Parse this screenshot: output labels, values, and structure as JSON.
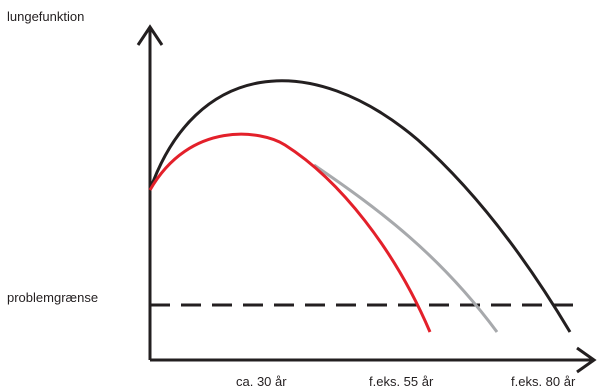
{
  "diagram": {
    "y_axis_label": "lungefunktion",
    "threshold_label": "problemgrænse",
    "x_labels": [
      "ca. 30 år",
      "f.eks. 55 år",
      "f.eks. 80 år"
    ],
    "colors": {
      "axis": "#231f20",
      "normal_curve": "#231f20",
      "decline_curve": "#e3202a",
      "slowed_decline_curve": "#a7a9ac",
      "threshold_line": "#231f20"
    }
  }
}
